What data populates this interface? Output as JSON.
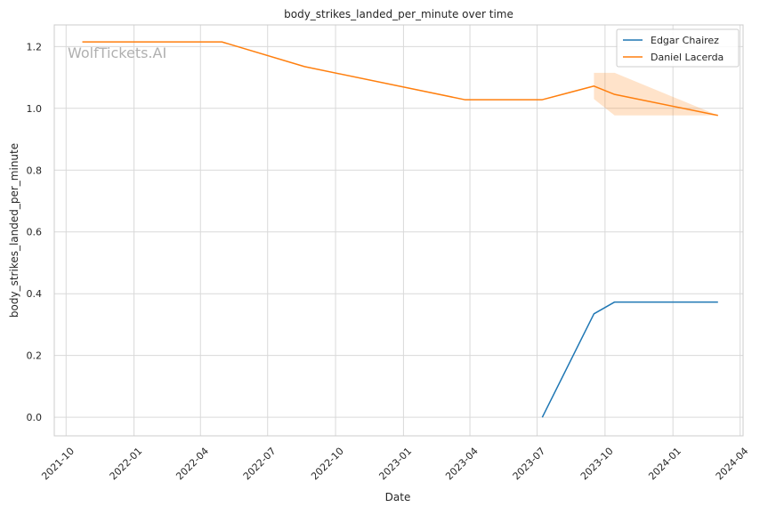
{
  "watermark": "WolfTickets.AI",
  "chart_data": {
    "type": "line",
    "title": "body_strikes_landed_per_minute over time",
    "xlabel": "Date",
    "ylabel": "body_strikes_landed_per_minute",
    "x_ticks": [
      "2021-10",
      "2022-01",
      "2022-04",
      "2022-07",
      "2022-10",
      "2023-01",
      "2023-04",
      "2023-07",
      "2023-10",
      "2024-01",
      "2024-04"
    ],
    "y_ticks": [
      "0.0",
      "0.2",
      "0.4",
      "0.6",
      "0.8",
      "1.0",
      "1.2"
    ],
    "xlim": [
      "2021-09-15",
      "2024-04-05"
    ],
    "ylim": [
      -0.06,
      1.27
    ],
    "grid": true,
    "legend_position": "top-right",
    "series": [
      {
        "name": "Edgar Chairez",
        "color": "#1f77b4",
        "x": [
          "2023-07-08",
          "2023-09-16",
          "2023-10-14",
          "2024-03-02"
        ],
        "y": [
          0.0,
          0.335,
          0.373,
          0.373
        ]
      },
      {
        "name": "Daniel Lacerda",
        "color": "#ff7f0e",
        "x": [
          "2021-10-23",
          "2022-04-30",
          "2022-08-20",
          "2023-03-25",
          "2023-07-08",
          "2023-09-16",
          "2023-10-14",
          "2024-03-02"
        ],
        "y": [
          1.215,
          1.215,
          1.135,
          1.028,
          1.028,
          1.072,
          1.045,
          0.977
        ],
        "band": {
          "x": [
            "2023-09-16",
            "2023-10-14",
            "2024-03-02"
          ],
          "lower": [
            1.03,
            0.977,
            0.977
          ],
          "upper": [
            1.115,
            1.115,
            0.977
          ]
        }
      }
    ]
  }
}
